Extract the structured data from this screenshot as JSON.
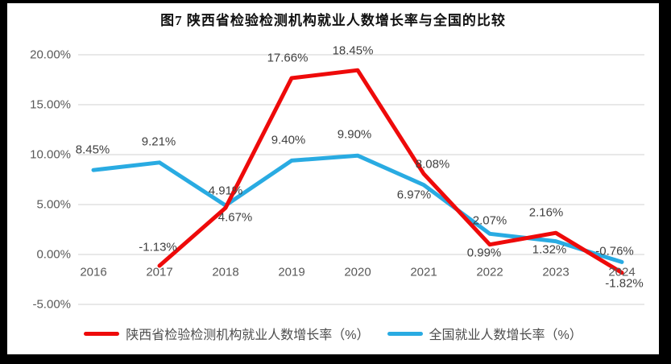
{
  "title": "图7 陕西省检验检测机构就业人数增长率与全国的比较",
  "colors": {
    "frame": "#000000",
    "background": "#ffffff",
    "gridline": "#d9d9d9",
    "axis_text": "#595959",
    "data_label_text": "#3f3f3f"
  },
  "chart_data": {
    "type": "line",
    "title": "图7 陕西省检验检测机构就业人数增长率与全国的比较",
    "categories": [
      "2016",
      "2017",
      "2018",
      "2019",
      "2020",
      "2021",
      "2022",
      "2023",
      "2024"
    ],
    "y_axis": {
      "ticks": [
        "20.00%",
        "15.00%",
        "10.00%",
        "5.00%",
        "0.00%",
        "-5.00%"
      ],
      "min": -5,
      "max": 20,
      "step": 5,
      "unit": "%"
    },
    "grid": true,
    "legend_position": "bottom",
    "series": [
      {
        "name": "陕西省检验检测机构就业人数增长率（%）",
        "color": "#ee0a0a",
        "values": [
          null,
          -1.13,
          4.67,
          17.66,
          18.45,
          8.08,
          0.99,
          2.16,
          -1.82
        ],
        "labels": [
          "",
          "-1.13%",
          "4.67%",
          "17.66%",
          "18.45%",
          "8.08%",
          "0.99%",
          "2.16%",
          "-1.82%"
        ]
      },
      {
        "name": "全国就业人数增长率（%）",
        "color": "#29abe2",
        "values": [
          8.45,
          9.21,
          4.91,
          9.4,
          9.9,
          6.97,
          2.07,
          1.32,
          -0.76
        ],
        "labels": [
          "8.45%",
          "9.21%",
          "4.91%",
          "9.40%",
          "9.90%",
          "6.97%",
          "2.07%",
          "1.32%",
          "-0.76%"
        ]
      }
    ]
  }
}
